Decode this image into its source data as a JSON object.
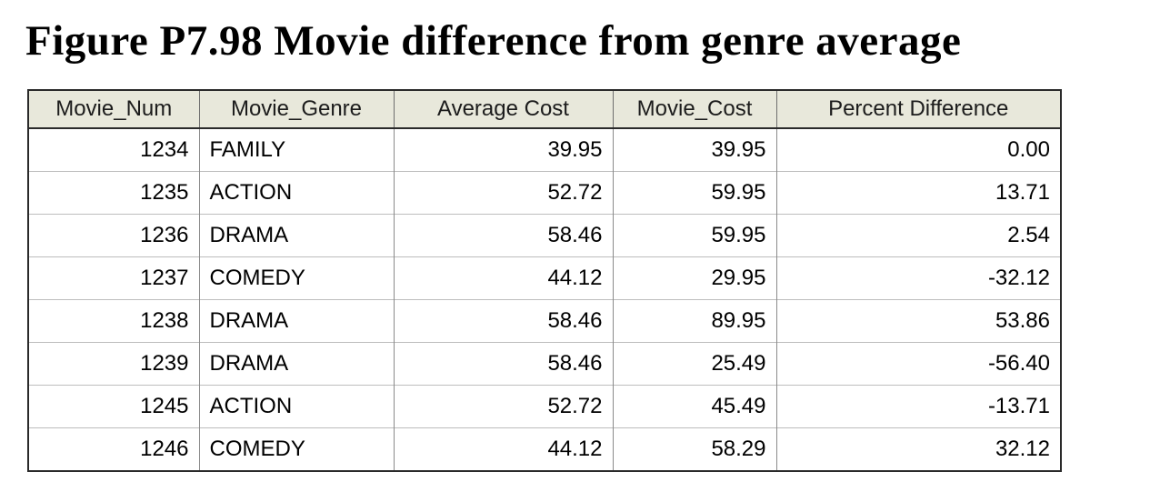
{
  "figure": {
    "title": "Figure P7.98 Movie difference from genre average"
  },
  "table": {
    "headers": [
      "Movie_Num",
      "Movie_Genre",
      "Average Cost",
      "Movie_Cost",
      "Percent Difference"
    ],
    "column_alignments": [
      "right",
      "left",
      "right",
      "right",
      "right"
    ],
    "rows": [
      [
        "1234",
        "FAMILY",
        "39.95",
        "39.95",
        "0.00"
      ],
      [
        "1235",
        "ACTION",
        "52.72",
        "59.95",
        "13.71"
      ],
      [
        "1236",
        "DRAMA",
        "58.46",
        "59.95",
        "2.54"
      ],
      [
        "1237",
        "COMEDY",
        "44.12",
        "29.95",
        "-32.12"
      ],
      [
        "1238",
        "DRAMA",
        "58.46",
        "89.95",
        "53.86"
      ],
      [
        "1239",
        "DRAMA",
        "58.46",
        "25.49",
        "-56.40"
      ],
      [
        "1245",
        "ACTION",
        "52.72",
        "45.49",
        "-13.71"
      ],
      [
        "1246",
        "COMEDY",
        "44.12",
        "58.29",
        "32.12"
      ]
    ],
    "colors": {
      "header_bg": "#e8e8db",
      "outer_border": "#2a2a2a"
    }
  }
}
